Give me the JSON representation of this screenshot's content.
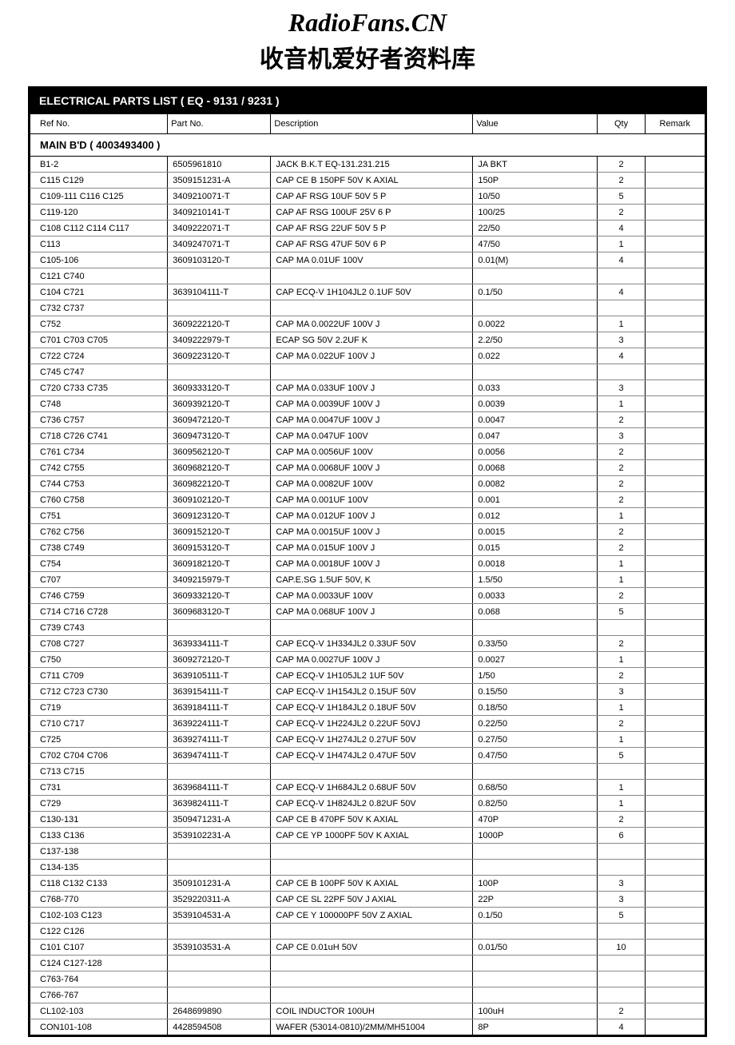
{
  "header": {
    "site_en": "RadioFans.CN",
    "site_cn": "收音机爱好者资料库"
  },
  "title": "ELECTRICAL PARTS LIST ( EQ - 9131 / 9231 )",
  "columns": {
    "ref": "Ref No.",
    "part": "Part No.",
    "desc": "Description",
    "value": "Value",
    "qty": "Qty",
    "remark": "Remark"
  },
  "section_header": "MAIN B'D ( 4003493400 )",
  "rows": [
    {
      "ref": "B1-2",
      "part": "6505961810",
      "desc": "JACK B.K.T EQ-131.231.215",
      "value": "JA BKT",
      "qty": "2"
    },
    {
      "ref": "C115 C129",
      "part": "3509151231-A",
      "desc": "CAP CE B 150PF 50V K AXIAL",
      "value": "150P",
      "qty": "2"
    },
    {
      "ref": "C109-111 C116 C125",
      "part": "3409210071-T",
      "desc": "CAP AF RSG 10UF 50V 5 P",
      "value": "10/50",
      "qty": "5"
    },
    {
      "ref": "C119-120",
      "part": "3409210141-T",
      "desc": "CAP AF RSG 100UF 25V 6 P",
      "value": "100/25",
      "qty": "2"
    },
    {
      "ref": "C108 C112 C114 C117",
      "part": "3409222071-T",
      "desc": "CAP AF RSG 22UF 50V 5 P",
      "value": "22/50",
      "qty": "4"
    },
    {
      "ref": "C113",
      "part": "3409247071-T",
      "desc": "CAP AF RSG 47UF 50V 6 P",
      "value": "47/50",
      "qty": "1"
    },
    {
      "ref": "C105-106",
      "part": "3609103120-T",
      "desc": "CAP MA 0.01UF 100V",
      "value": "0.01(M)",
      "qty": "4"
    },
    {
      "ref": "C121 C740",
      "part": "",
      "desc": "",
      "value": "",
      "qty": ""
    },
    {
      "ref": "C104 C721",
      "part": "3639104111-T",
      "desc": "CAP ECQ-V 1H104JL2 0.1UF 50V",
      "value": "0.1/50",
      "qty": "4"
    },
    {
      "ref": "C732 C737",
      "part": "",
      "desc": "",
      "value": "",
      "qty": ""
    },
    {
      "ref": "C752",
      "part": "3609222120-T",
      "desc": "CAP MA 0.0022UF 100V J",
      "value": "0.0022",
      "qty": "1"
    },
    {
      "ref": "C701 C703 C705",
      "part": "3409222979-T",
      "desc": "ECAP SG 50V 2.2UF K",
      "value": "2.2/50",
      "qty": "3"
    },
    {
      "ref": "C722 C724",
      "part": "3609223120-T",
      "desc": "CAP MA 0.022UF 100V J",
      "value": "0.022",
      "qty": "4"
    },
    {
      "ref": "C745 C747",
      "part": "",
      "desc": "",
      "value": "",
      "qty": ""
    },
    {
      "ref": "C720 C733 C735",
      "part": "3609333120-T",
      "desc": "CAP MA 0.033UF 100V J",
      "value": "0.033",
      "qty": "3"
    },
    {
      "ref": "C748",
      "part": "3609392120-T",
      "desc": "CAP MA 0.0039UF 100V J",
      "value": "0.0039",
      "qty": "1"
    },
    {
      "ref": "C736 C757",
      "part": "3609472120-T",
      "desc": "CAP MA 0.0047UF 100V J",
      "value": "0.0047",
      "qty": "2"
    },
    {
      "ref": "C718 C726 C741",
      "part": "3609473120-T",
      "desc": "CAP MA 0.047UF 100V",
      "value": "0.047",
      "qty": "3"
    },
    {
      "ref": "C761 C734",
      "part": "3609562120-T",
      "desc": "CAP MA 0.0056UF 100V",
      "value": "0.0056",
      "qty": "2"
    },
    {
      "ref": "C742 C755",
      "part": "3609682120-T",
      "desc": "CAP MA 0.0068UF 100V J",
      "value": "0.0068",
      "qty": "2"
    },
    {
      "ref": "C744 C753",
      "part": "3609822120-T",
      "desc": "CAP MA 0.0082UF 100V",
      "value": "0.0082",
      "qty": "2"
    },
    {
      "ref": "C760 C758",
      "part": "3609102120-T",
      "desc": "CAP MA 0.001UF 100V",
      "value": "0.001",
      "qty": "2"
    },
    {
      "ref": "C751",
      "part": "3609123120-T",
      "desc": "CAP MA 0.012UF 100V J",
      "value": "0.012",
      "qty": "1"
    },
    {
      "ref": "C762 C756",
      "part": "3609152120-T",
      "desc": "CAP MA 0.0015UF 100V J",
      "value": "0.0015",
      "qty": "2"
    },
    {
      "ref": "C738 C749",
      "part": "3609153120-T",
      "desc": "CAP MA 0.015UF 100V J",
      "value": "0.015",
      "qty": "2"
    },
    {
      "ref": "C754",
      "part": "3609182120-T",
      "desc": "CAP MA 0.0018UF 100V J",
      "value": "0.0018",
      "qty": "1"
    },
    {
      "ref": "C707",
      "part": "3409215979-T",
      "desc": "CAP.E.SG 1.5UF 50V, K",
      "value": "1.5/50",
      "qty": "1"
    },
    {
      "ref": "C746 C759",
      "part": "3609332120-T",
      "desc": "CAP MA 0.0033UF 100V",
      "value": "0.0033",
      "qty": "2"
    },
    {
      "ref": "C714 C716 C728",
      "part": "3609683120-T",
      "desc": "CAP MA 0.068UF 100V J",
      "value": "0.068",
      "qty": "5"
    },
    {
      "ref": "C739 C743",
      "part": "",
      "desc": "",
      "value": "",
      "qty": ""
    },
    {
      "ref": "C708 C727",
      "part": "3639334111-T",
      "desc": "CAP ECQ-V 1H334JL2 0.33UF 50V",
      "value": "0.33/50",
      "qty": "2"
    },
    {
      "ref": "C750",
      "part": "3609272120-T",
      "desc": "CAP MA 0.0027UF 100V J",
      "value": "0.0027",
      "qty": "1"
    },
    {
      "ref": "C711 C709",
      "part": "3639105111-T",
      "desc": "CAP ECQ-V 1H105JL2 1UF 50V",
      "value": "1/50",
      "qty": "2"
    },
    {
      "ref": "C712 C723 C730",
      "part": "3639154111-T",
      "desc": "CAP ECQ-V 1H154JL2 0.15UF 50V",
      "value": "0.15/50",
      "qty": "3"
    },
    {
      "ref": "C719",
      "part": "3639184111-T",
      "desc": "CAP ECQ-V 1H184JL2 0.18UF 50V",
      "value": "0.18/50",
      "qty": "1"
    },
    {
      "ref": "C710 C717",
      "part": "3639224111-T",
      "desc": "CAP ECQ-V 1H224JL2 0.22UF 50VJ",
      "value": "0.22/50",
      "qty": "2"
    },
    {
      "ref": "C725",
      "part": "3639274111-T",
      "desc": "CAP ECQ-V 1H274JL2 0.27UF 50V",
      "value": "0.27/50",
      "qty": "1"
    },
    {
      "ref": "C702 C704 C706",
      "part": "3639474111-T",
      "desc": "CAP ECQ-V 1H474JL2 0.47UF 50V",
      "value": "0.47/50",
      "qty": "5"
    },
    {
      "ref": "C713 C715",
      "part": "",
      "desc": "",
      "value": "",
      "qty": ""
    },
    {
      "ref": "C731",
      "part": "3639684111-T",
      "desc": "CAP ECQ-V 1H684JL2 0.68UF 50V",
      "value": "0.68/50",
      "qty": "1"
    },
    {
      "ref": "C729",
      "part": "3639824111-T",
      "desc": "CAP ECQ-V 1H824JL2 0.82UF 50V",
      "value": "0.82/50",
      "qty": "1"
    },
    {
      "ref": "C130-131",
      "part": "3509471231-A",
      "desc": "CAP CE B 470PF 50V K AXIAL",
      "value": "470P",
      "qty": "2"
    },
    {
      "ref": "C133 C136",
      "part": "3539102231-A",
      "desc": "CAP CE YP 1000PF 50V K AXIAL",
      "value": "1000P",
      "qty": "6"
    },
    {
      "ref": "C137-138",
      "part": "",
      "desc": "",
      "value": "",
      "qty": ""
    },
    {
      "ref": "C134-135",
      "part": "",
      "desc": "",
      "value": "",
      "qty": ""
    },
    {
      "ref": "C118 C132 C133",
      "part": "3509101231-A",
      "desc": "CAP CE B 100PF 50V K AXIAL",
      "value": "100P",
      "qty": "3"
    },
    {
      "ref": "C768-770",
      "part": "3529220311-A",
      "desc": "CAP CE SL 22PF 50V J AXIAL",
      "value": "22P",
      "qty": "3"
    },
    {
      "ref": "C102-103 C123",
      "part": "3539104531-A",
      "desc": "CAP CE Y  100000PF 50V Z AXIAL",
      "value": "0.1/50",
      "qty": "5"
    },
    {
      "ref": "C122 C126",
      "part": "",
      "desc": "",
      "value": "",
      "qty": ""
    },
    {
      "ref": "C101 C107",
      "part": "3539103531-A",
      "desc": "CAP CE 0.01uH 50V",
      "value": "0.01/50",
      "qty": "10"
    },
    {
      "ref": "C124 C127-128",
      "part": "",
      "desc": "",
      "value": "",
      "qty": ""
    },
    {
      "ref": "C763-764",
      "part": "",
      "desc": "",
      "value": "",
      "qty": ""
    },
    {
      "ref": "C766-767",
      "part": "",
      "desc": "",
      "value": "",
      "qty": ""
    },
    {
      "ref": "CL102-103",
      "part": "2648699890",
      "desc": "COIL INDUCTOR 100UH",
      "value": "100uH",
      "qty": "2"
    },
    {
      "ref": "CON101-108",
      "part": "4428594508",
      "desc": "WAFER (53014-0810)/2MM/MH51004",
      "value": "8P",
      "qty": "4"
    }
  ]
}
